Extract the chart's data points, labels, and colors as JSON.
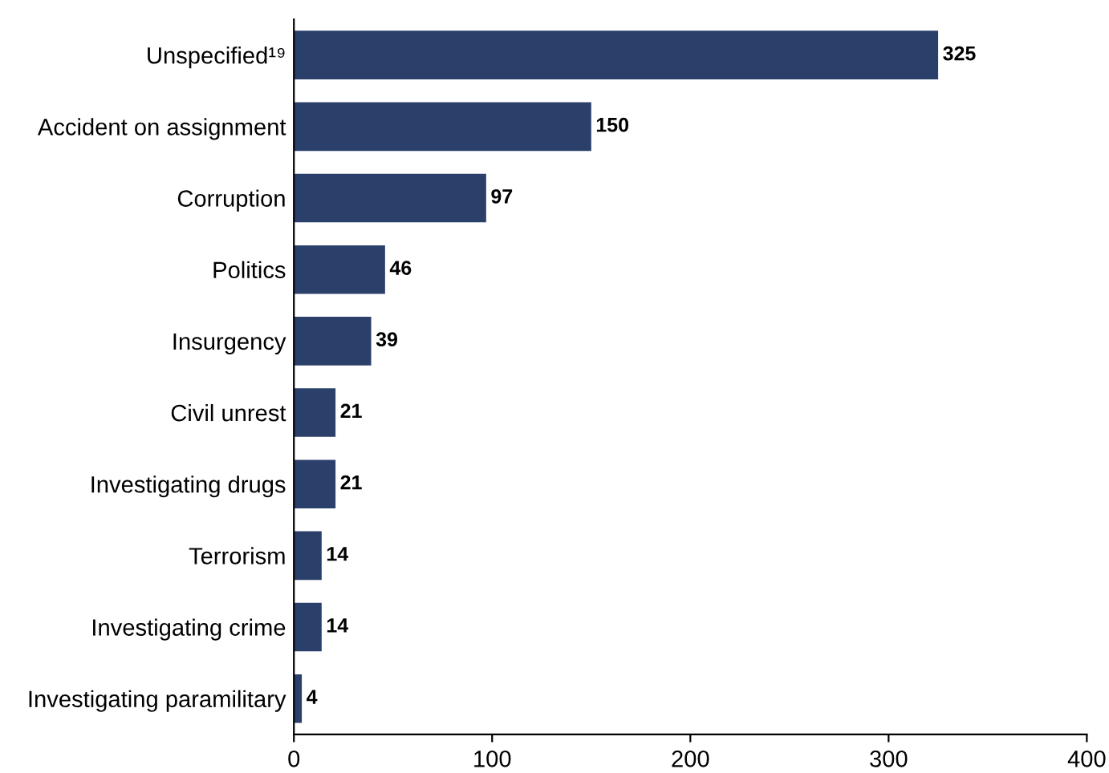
{
  "chart_data": {
    "type": "bar",
    "orientation": "horizontal",
    "categories": [
      "Unspecified¹⁹",
      "Accident on assignment",
      "Corruption",
      "Politics",
      "Insurgency",
      "Civil unrest",
      "Investigating drugs",
      "Terrorism",
      "Investigating crime",
      "Investigating paramilitary"
    ],
    "values": [
      325,
      150,
      97,
      46,
      39,
      21,
      21,
      14,
      14,
      4
    ],
    "color": "#2b3f6b",
    "xlim": [
      0,
      400
    ],
    "xticks": [
      0,
      100,
      200,
      300,
      400
    ],
    "data_labels": true,
    "grid": false,
    "legend": false
  }
}
